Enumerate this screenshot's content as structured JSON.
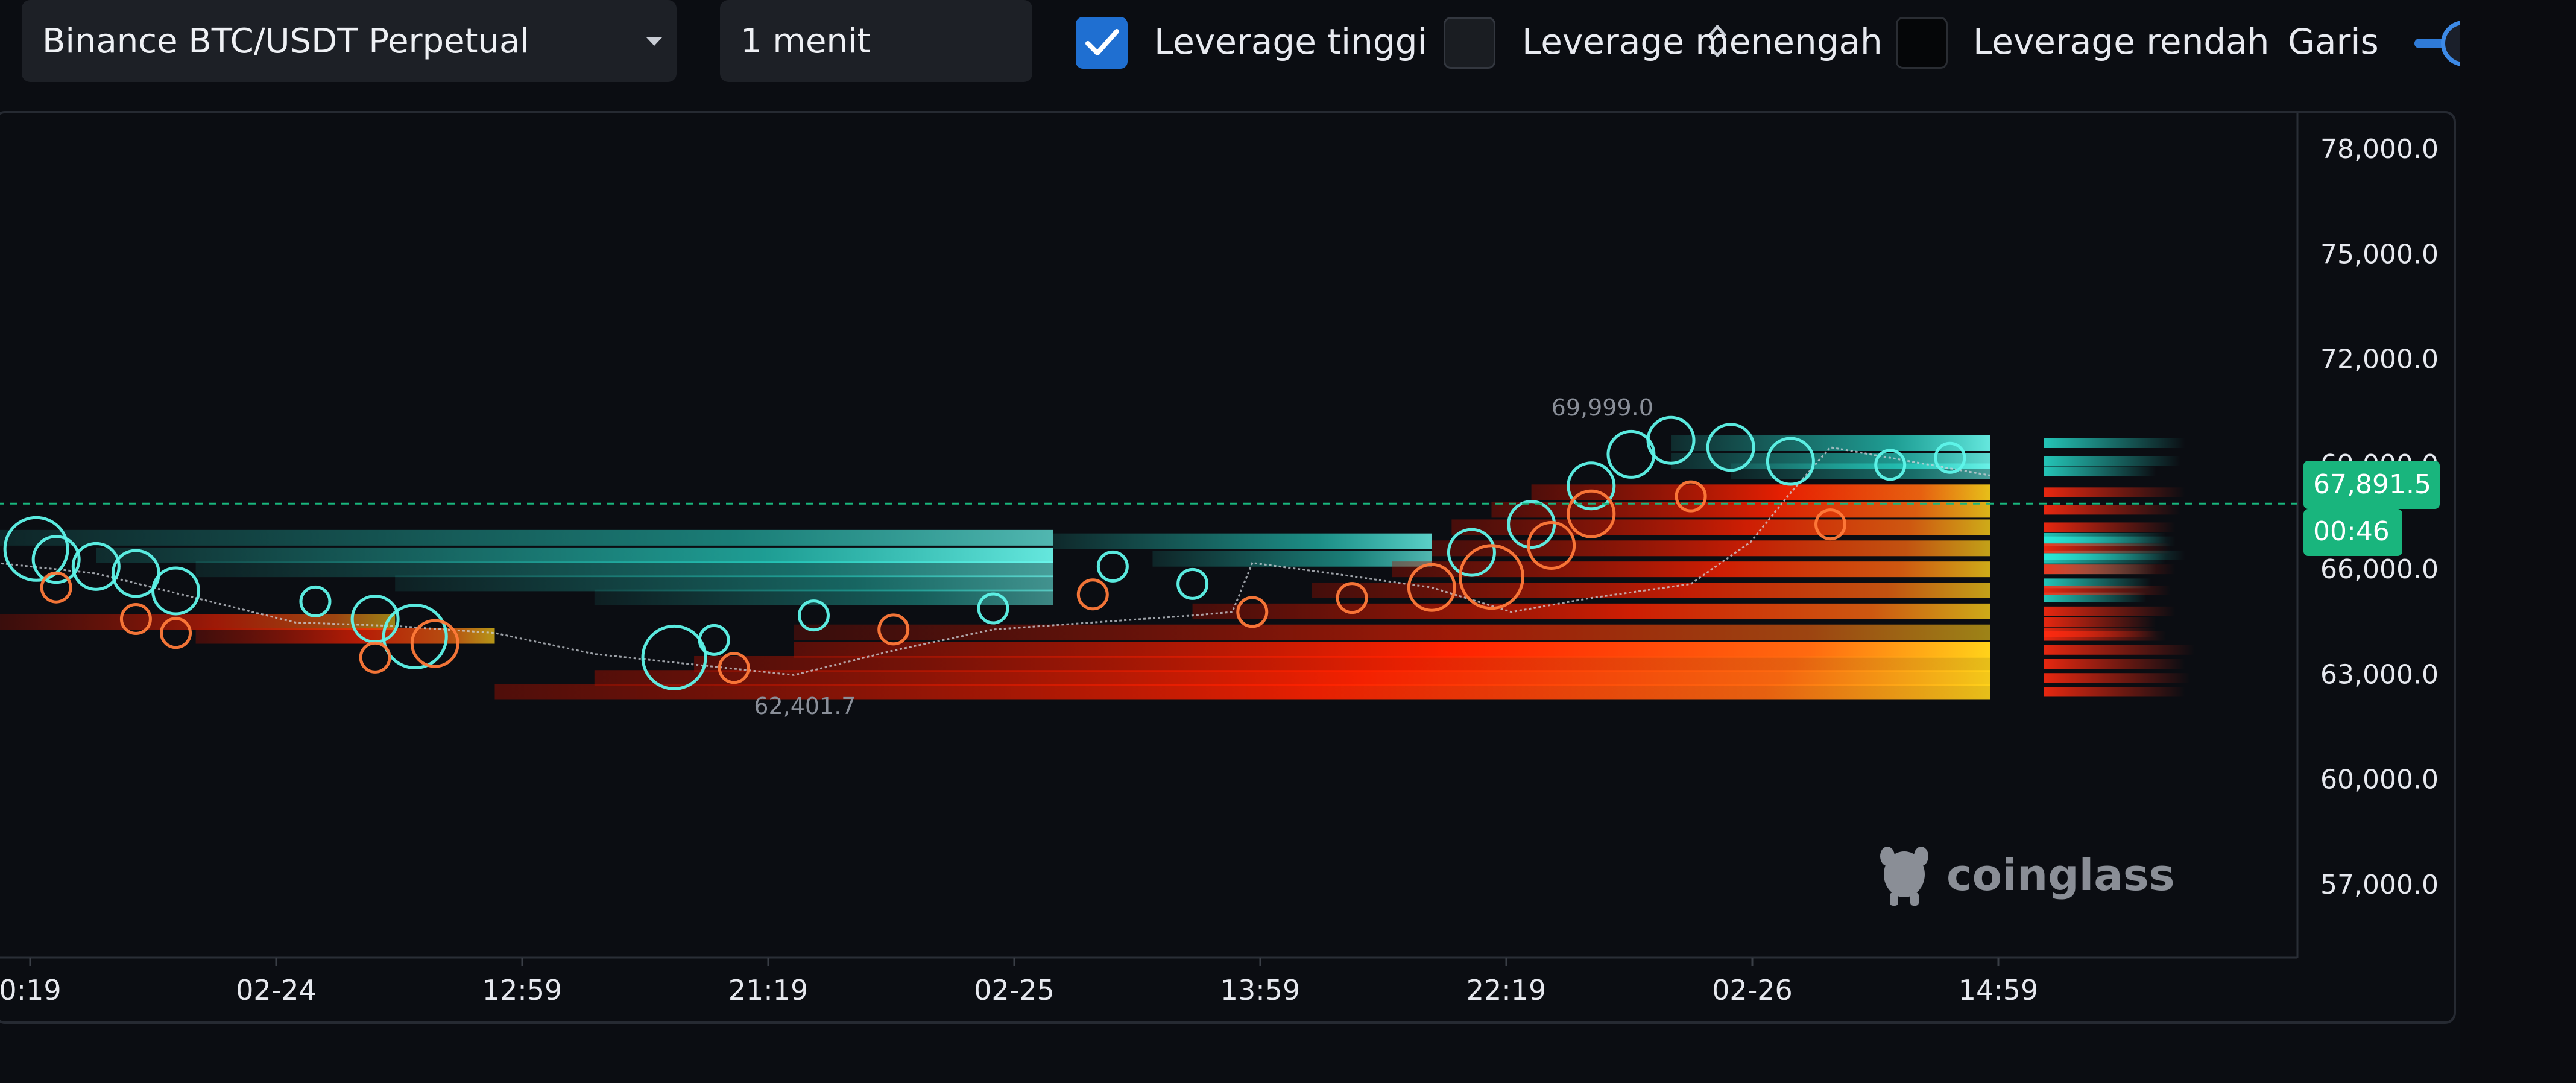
{
  "toolbar": {
    "symbol_select": {
      "label": "Binance BTC/USDT Perpetual"
    },
    "interval_stepper": {
      "label": "1 menit"
    },
    "filters": [
      {
        "label": "Leverage tinggi",
        "checked": true,
        "color": "#1f6fd1"
      },
      {
        "label": "Leverage menengah",
        "checked": false,
        "color": "#1a1d22"
      },
      {
        "label": "Leverage rendah",
        "checked": false,
        "color": "#050608"
      }
    ],
    "line_label": "Garis"
  },
  "chart_data": {
    "type": "heatmap",
    "title": "",
    "y_ticks": [
      "78,000.0",
      "75,000.0",
      "72,000.0",
      "69,000.0",
      "66,000.0",
      "63,000.0",
      "60,000.0",
      "57,000.0"
    ],
    "y_tick_values": [
      78000,
      75000,
      72000,
      69000,
      66000,
      63000,
      60000,
      57000
    ],
    "x_ticks": [
      "0:19",
      "02-24",
      "12:59",
      "21:19",
      "02-25",
      "13:59",
      "22:19",
      "02-26",
      "14:59"
    ],
    "current_price": {
      "value": 67891.5,
      "label": "67,891.5",
      "countdown": "00:46",
      "color": "#19b57d"
    },
    "high_marker": {
      "value": 69999.0,
      "label": "69,999.0"
    },
    "low_marker": {
      "value": 62401.7,
      "label": "62,401.7"
    },
    "watermark": "coinglass",
    "colors": {
      "short_liquidation": "#2af2e0",
      "long_liquidation_hot": "#ff2200",
      "long_liquidation_peak": "#ffd21a",
      "background": "#0b0d12"
    },
    "price_path": [
      {
        "x": 0.0,
        "y": 66200
      },
      {
        "x": 0.05,
        "y": 65900
      },
      {
        "x": 0.1,
        "y": 65200
      },
      {
        "x": 0.15,
        "y": 64500
      },
      {
        "x": 0.2,
        "y": 64400
      },
      {
        "x": 0.25,
        "y": 64200
      },
      {
        "x": 0.3,
        "y": 63600
      },
      {
        "x": 0.35,
        "y": 63300
      },
      {
        "x": 0.4,
        "y": 63000
      },
      {
        "x": 0.45,
        "y": 63700
      },
      {
        "x": 0.5,
        "y": 64300
      },
      {
        "x": 0.55,
        "y": 64500
      },
      {
        "x": 0.6,
        "y": 64700
      },
      {
        "x": 0.62,
        "y": 64800
      },
      {
        "x": 0.63,
        "y": 66200
      },
      {
        "x": 0.67,
        "y": 65900
      },
      {
        "x": 0.72,
        "y": 65500
      },
      {
        "x": 0.76,
        "y": 64800
      },
      {
        "x": 0.8,
        "y": 65200
      },
      {
        "x": 0.85,
        "y": 65600
      },
      {
        "x": 0.88,
        "y": 66800
      },
      {
        "x": 0.9,
        "y": 68200
      },
      {
        "x": 0.92,
        "y": 69500
      },
      {
        "x": 0.95,
        "y": 69200
      },
      {
        "x": 0.98,
        "y": 68900
      },
      {
        "x": 1.0,
        "y": 68700
      }
    ],
    "liquidation_bands": [
      {
        "price": 66900,
        "side": "short",
        "x_start": 0.0,
        "x_end": 0.53,
        "intensity": 0.7
      },
      {
        "price": 66400,
        "side": "short",
        "x_start": 0.05,
        "x_end": 0.53,
        "intensity": 0.9
      },
      {
        "price": 66000,
        "side": "short",
        "x_start": 0.1,
        "x_end": 0.53,
        "intensity": 0.6
      },
      {
        "price": 65600,
        "side": "short",
        "x_start": 0.2,
        "x_end": 0.53,
        "intensity": 0.55
      },
      {
        "price": 65200,
        "side": "short",
        "x_start": 0.3,
        "x_end": 0.53,
        "intensity": 0.5
      },
      {
        "price": 66800,
        "side": "short",
        "x_start": 0.53,
        "x_end": 0.72,
        "intensity": 0.8
      },
      {
        "price": 66300,
        "side": "short",
        "x_start": 0.58,
        "x_end": 0.72,
        "intensity": 0.7
      },
      {
        "price": 69600,
        "side": "short",
        "x_start": 0.84,
        "x_end": 1.0,
        "intensity": 0.9
      },
      {
        "price": 69100,
        "side": "short",
        "x_start": 0.84,
        "x_end": 1.0,
        "intensity": 0.85
      },
      {
        "price": 68800,
        "side": "short",
        "x_start": 0.87,
        "x_end": 1.0,
        "intensity": 0.6
      },
      {
        "price": 68200,
        "side": "long",
        "x_start": 0.77,
        "x_end": 1.0,
        "intensity": 0.9
      },
      {
        "price": 67700,
        "side": "long",
        "x_start": 0.75,
        "x_end": 1.0,
        "intensity": 0.85
      },
      {
        "price": 67200,
        "side": "long",
        "x_start": 0.73,
        "x_end": 1.0,
        "intensity": 0.8
      },
      {
        "price": 66600,
        "side": "long",
        "x_start": 0.72,
        "x_end": 1.0,
        "intensity": 0.75
      },
      {
        "price": 66000,
        "side": "long",
        "x_start": 0.7,
        "x_end": 1.0,
        "intensity": 0.8
      },
      {
        "price": 65400,
        "side": "long",
        "x_start": 0.66,
        "x_end": 1.0,
        "intensity": 0.75
      },
      {
        "price": 64800,
        "side": "long",
        "x_start": 0.6,
        "x_end": 1.0,
        "intensity": 0.8
      },
      {
        "price": 64200,
        "side": "long",
        "x_start": 0.4,
        "x_end": 1.0,
        "intensity": 0.6
      },
      {
        "price": 63700,
        "side": "long",
        "x_start": 0.4,
        "x_end": 1.0,
        "intensity": 1.0
      },
      {
        "price": 63300,
        "side": "long",
        "x_start": 0.35,
        "x_end": 1.0,
        "intensity": 0.9
      },
      {
        "price": 62900,
        "side": "long",
        "x_start": 0.3,
        "x_end": 1.0,
        "intensity": 0.95
      },
      {
        "price": 62500,
        "side": "long",
        "x_start": 0.25,
        "x_end": 1.0,
        "intensity": 0.9
      },
      {
        "price": 64500,
        "side": "long",
        "x_start": 0.0,
        "x_end": 0.2,
        "intensity": 0.6
      },
      {
        "price": 64100,
        "side": "long",
        "x_start": 0.1,
        "x_end": 0.25,
        "intensity": 0.7
      }
    ],
    "liquidation_bubbles": [
      {
        "x": 0.02,
        "y": 66600,
        "size": 3,
        "side": "short"
      },
      {
        "x": 0.03,
        "y": 66300,
        "size": 2,
        "side": "short"
      },
      {
        "x": 0.05,
        "y": 66100,
        "size": 2,
        "side": "short"
      },
      {
        "x": 0.07,
        "y": 65900,
        "size": 2,
        "side": "short"
      },
      {
        "x": 0.09,
        "y": 65400,
        "size": 2,
        "side": "short"
      },
      {
        "x": 0.03,
        "y": 65500,
        "size": 1,
        "side": "long"
      },
      {
        "x": 0.07,
        "y": 64600,
        "size": 1,
        "side": "long"
      },
      {
        "x": 0.09,
        "y": 64200,
        "size": 1,
        "side": "long"
      },
      {
        "x": 0.16,
        "y": 65100,
        "size": 1,
        "side": "short"
      },
      {
        "x": 0.19,
        "y": 64600,
        "size": 2,
        "side": "short"
      },
      {
        "x": 0.21,
        "y": 64100,
        "size": 3,
        "side": "short"
      },
      {
        "x": 0.22,
        "y": 63900,
        "size": 2,
        "side": "long"
      },
      {
        "x": 0.19,
        "y": 63500,
        "size": 1,
        "side": "long"
      },
      {
        "x": 0.34,
        "y": 63500,
        "size": 3,
        "side": "short"
      },
      {
        "x": 0.36,
        "y": 64000,
        "size": 1,
        "side": "short"
      },
      {
        "x": 0.37,
        "y": 63200,
        "size": 1,
        "side": "long"
      },
      {
        "x": 0.41,
        "y": 64700,
        "size": 1,
        "side": "short"
      },
      {
        "x": 0.45,
        "y": 64300,
        "size": 1,
        "side": "long"
      },
      {
        "x": 0.5,
        "y": 64900,
        "size": 1,
        "side": "short"
      },
      {
        "x": 0.56,
        "y": 66100,
        "size": 1,
        "side": "short"
      },
      {
        "x": 0.55,
        "y": 65300,
        "size": 1,
        "side": "long"
      },
      {
        "x": 0.6,
        "y": 65600,
        "size": 1,
        "side": "short"
      },
      {
        "x": 0.63,
        "y": 64800,
        "size": 1,
        "side": "long"
      },
      {
        "x": 0.68,
        "y": 65200,
        "size": 1,
        "side": "long"
      },
      {
        "x": 0.72,
        "y": 65500,
        "size": 2,
        "side": "long"
      },
      {
        "x": 0.74,
        "y": 66500,
        "size": 2,
        "side": "short"
      },
      {
        "x": 0.75,
        "y": 65800,
        "size": 3,
        "side": "long"
      },
      {
        "x": 0.77,
        "y": 67300,
        "size": 2,
        "side": "short"
      },
      {
        "x": 0.78,
        "y": 66700,
        "size": 2,
        "side": "long"
      },
      {
        "x": 0.8,
        "y": 68400,
        "size": 2,
        "side": "short"
      },
      {
        "x": 0.8,
        "y": 67600,
        "size": 2,
        "side": "long"
      },
      {
        "x": 0.82,
        "y": 69300,
        "size": 2,
        "side": "short"
      },
      {
        "x": 0.84,
        "y": 69700,
        "size": 2,
        "side": "short"
      },
      {
        "x": 0.85,
        "y": 68100,
        "size": 1,
        "side": "long"
      },
      {
        "x": 0.87,
        "y": 69500,
        "size": 2,
        "side": "short"
      },
      {
        "x": 0.9,
        "y": 69100,
        "size": 2,
        "side": "short"
      },
      {
        "x": 0.92,
        "y": 67300,
        "size": 1,
        "side": "long"
      },
      {
        "x": 0.95,
        "y": 69000,
        "size": 1,
        "side": "short"
      },
      {
        "x": 0.98,
        "y": 69200,
        "size": 1,
        "side": "short"
      }
    ]
  }
}
